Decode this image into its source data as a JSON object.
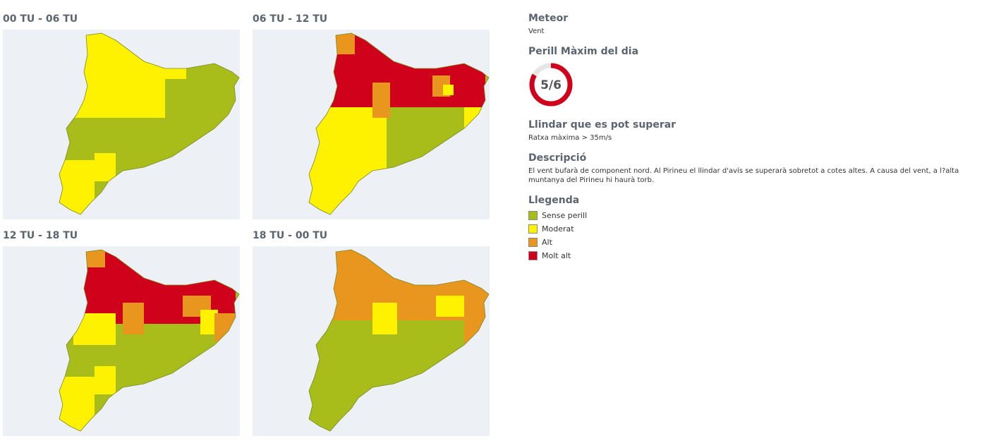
{
  "panels": [
    {
      "title": "00 TU - 06 TU"
    },
    {
      "title": "06 TU - 12 TU"
    },
    {
      "title": "12 TU - 18 TU"
    },
    {
      "title": "18 TU - 00 TU"
    }
  ],
  "info": {
    "meteor_heading": "Meteor",
    "meteor": "Vent",
    "danger_heading": "Perill Màxim del dia",
    "danger": {
      "label": "5/6",
      "value": 5,
      "max": 6
    },
    "threshold_heading": "Llindar que es pot superar",
    "threshold": "Ratxa màxima > 35m/s",
    "description_heading": "Descripció",
    "description": "El vent bufarà de component nord. Al Pirineu el llindar d'avís se superarà sobretot a cotes altes. A causa del vent, a l?alta muntanya del Pirineu hi haurà torb.",
    "legend_heading": "Llegenda",
    "legend": [
      {
        "label": "Sense perill",
        "color": "#a8bd1a"
      },
      {
        "label": "Moderat",
        "color": "#fff200"
      },
      {
        "label": "Alt",
        "color": "#e8961e"
      },
      {
        "label": "Molt alt",
        "color": "#d0021b"
      }
    ]
  }
}
